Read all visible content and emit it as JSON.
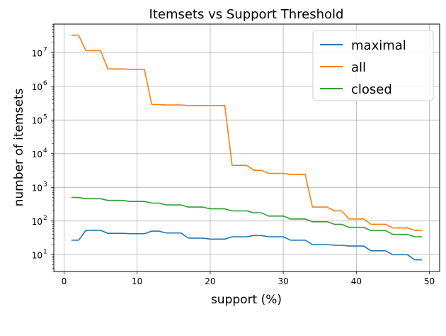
{
  "chart_data": {
    "type": "line",
    "title": "Itemsets vs Support Threshold",
    "xlabel": "support (%)",
    "ylabel": "number of itemsets",
    "xlim": [
      -1.4,
      51.4
    ],
    "ylim_log10": [
      0.5,
      7.85
    ],
    "yscale": "log",
    "grid": true,
    "legend_position": "top-right",
    "x_ticks": [
      0,
      10,
      20,
      30,
      40,
      50
    ],
    "x_tick_labels": [
      "0",
      "10",
      "20",
      "30",
      "40",
      "50"
    ],
    "y_tick_exponents": [
      1,
      2,
      3,
      4,
      5,
      6,
      7
    ],
    "y_tick_labels": [
      {
        "base": "10",
        "exp": "1"
      },
      {
        "base": "10",
        "exp": "2"
      },
      {
        "base": "10",
        "exp": "3"
      },
      {
        "base": "10",
        "exp": "4"
      },
      {
        "base": "10",
        "exp": "5"
      },
      {
        "base": "10",
        "exp": "6"
      },
      {
        "base": "10",
        "exp": "7"
      }
    ],
    "x": [
      1,
      2,
      3,
      4,
      5,
      6,
      7,
      8,
      9,
      10,
      11,
      12,
      13,
      14,
      15,
      16,
      17,
      18,
      19,
      20,
      21,
      22,
      23,
      24,
      25,
      26,
      27,
      28,
      29,
      30,
      31,
      32,
      33,
      34,
      35,
      36,
      37,
      38,
      39,
      40,
      41,
      42,
      43,
      44,
      45,
      46,
      47,
      48,
      49
    ],
    "series": [
      {
        "name": "maximal",
        "color": "#1f77b4",
        "values": [
          27,
          27,
          53,
          53,
          53,
          43,
          43,
          43,
          42,
          42,
          42,
          50,
          50,
          44,
          44,
          44,
          31,
          31,
          31,
          29,
          29,
          29,
          34,
          34,
          34,
          37,
          37,
          34,
          34,
          34,
          27,
          27,
          27,
          20,
          20,
          20,
          19,
          19,
          18,
          18,
          18,
          13,
          13,
          13,
          10,
          10,
          10,
          7,
          7
        ]
      },
      {
        "name": "all",
        "color": "#ff7f0e",
        "values": [
          33000000,
          33000000,
          11500000,
          11500000,
          11500000,
          3300000,
          3300000,
          3300000,
          3200000,
          3200000,
          3200000,
          290000,
          290000,
          280000,
          280000,
          280000,
          270000,
          270000,
          270000,
          270000,
          270000,
          270000,
          4500,
          4500,
          4500,
          3200,
          3200,
          2600,
          2600,
          2600,
          2400,
          2400,
          2400,
          260,
          260,
          260,
          200,
          200,
          115,
          115,
          115,
          80,
          80,
          80,
          62,
          62,
          62,
          53,
          53
        ]
      },
      {
        "name": "closed",
        "color": "#2ca02c",
        "values": [
          500,
          500,
          460,
          460,
          460,
          410,
          410,
          410,
          380,
          380,
          380,
          340,
          340,
          300,
          300,
          300,
          260,
          260,
          260,
          230,
          230,
          230,
          200,
          200,
          200,
          175,
          175,
          140,
          140,
          140,
          115,
          115,
          115,
          95,
          95,
          95,
          80,
          80,
          65,
          65,
          65,
          52,
          52,
          52,
          40,
          40,
          40,
          34,
          34
        ]
      }
    ]
  }
}
